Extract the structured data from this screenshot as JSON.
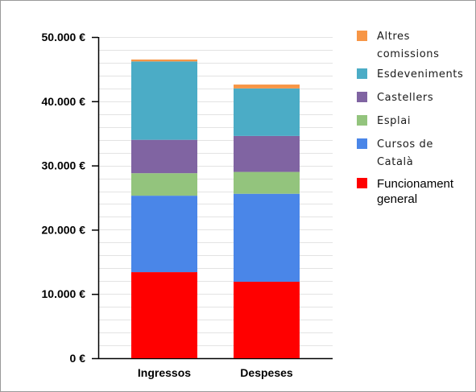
{
  "chart_data": {
    "type": "bar",
    "stacked": true,
    "categories": [
      "Ingressos",
      "Despeses"
    ],
    "series": [
      {
        "name": "Funcionament general",
        "color": "#ff0000",
        "values": [
          13400,
          11900
        ]
      },
      {
        "name": "Cursos de Català",
        "color": "#4a86e8",
        "values": [
          11900,
          13700
        ]
      },
      {
        "name": "Esplai",
        "color": "#93c47d",
        "values": [
          3500,
          3400
        ]
      },
      {
        "name": "Castellers",
        "color": "#8064a2",
        "values": [
          5200,
          5600
        ]
      },
      {
        "name": "Esdeveniments",
        "color": "#4bacc6",
        "values": [
          12200,
          7400
        ]
      },
      {
        "name": "Altres comissions",
        "color": "#f79646",
        "values": [
          300,
          600
        ]
      }
    ],
    "yticks": [
      "0 €",
      "10.000 €",
      "20.000 €",
      "30.000 €",
      "40.000 €",
      "50.000 €"
    ],
    "ylim": [
      0,
      50000
    ],
    "legend_position": "right",
    "grid": true
  },
  "legend": [
    {
      "lines": [
        "Altres",
        "comissions"
      ],
      "color": "#f79646",
      "style": "small"
    },
    {
      "lines": [
        "Esdeveniments"
      ],
      "color": "#4bacc6",
      "style": "small"
    },
    {
      "lines": [
        "Castellers"
      ],
      "color": "#8064a2",
      "style": "small"
    },
    {
      "lines": [
        "Esplai"
      ],
      "color": "#93c47d",
      "style": "small"
    },
    {
      "lines": [
        "Cursos de",
        "Català"
      ],
      "color": "#4a86e8",
      "style": "small"
    },
    {
      "lines": [
        "Funcionament",
        "general"
      ],
      "color": "#ff0000",
      "style": "big"
    }
  ]
}
